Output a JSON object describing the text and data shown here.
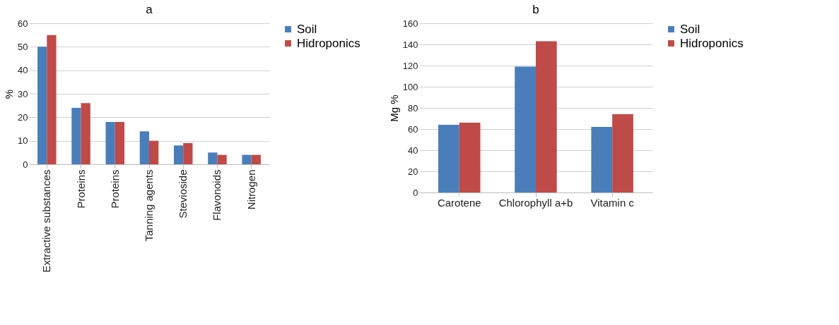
{
  "chart_data": [
    {
      "type": "bar",
      "title": "a",
      "ylabel": "%",
      "categories": [
        "Extractive substances",
        "Proteins",
        "Proteins",
        "Tanning agents",
        "Stevioside",
        "Flavonoids",
        "Nitrogen"
      ],
      "series": [
        {
          "name": "Soil",
          "color": "#4a7ebb",
          "values": [
            50,
            24,
            18,
            14,
            8,
            5,
            4
          ]
        },
        {
          "name": "Hidroponics",
          "color": "#be4b48",
          "values": [
            55,
            26,
            18,
            10,
            9,
            4,
            4
          ]
        }
      ],
      "ylim": [
        0,
        60
      ],
      "yticks": [
        0,
        10,
        20,
        30,
        40,
        50,
        60
      ],
      "grid": "y",
      "legend": "top right"
    },
    {
      "type": "bar",
      "title": "b",
      "ylabel": "Mg %",
      "categories": [
        "Carotene",
        "Chlorophyll a+b",
        "Vitamin c"
      ],
      "series": [
        {
          "name": "Soil",
          "color": "#4a7ebb",
          "values": [
            64,
            119,
            62
          ]
        },
        {
          "name": "Hidroponics",
          "color": "#be4b48",
          "values": [
            66,
            143,
            74
          ]
        }
      ],
      "ylim": [
        0,
        160
      ],
      "yticks": [
        0,
        20,
        40,
        60,
        80,
        100,
        120,
        140,
        160
      ],
      "grid": "y",
      "legend": "top right"
    }
  ]
}
